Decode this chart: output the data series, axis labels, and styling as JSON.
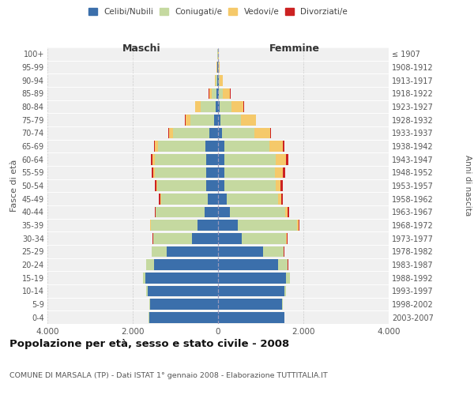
{
  "age_groups": [
    "0-4",
    "5-9",
    "10-14",
    "15-19",
    "20-24",
    "25-29",
    "30-34",
    "35-39",
    "40-44",
    "45-49",
    "50-54",
    "55-59",
    "60-64",
    "65-69",
    "70-74",
    "75-79",
    "80-84",
    "85-89",
    "90-94",
    "95-99",
    "100+"
  ],
  "birth_years": [
    "2003-2007",
    "1998-2002",
    "1993-1997",
    "1988-1992",
    "1983-1987",
    "1978-1982",
    "1973-1977",
    "1968-1972",
    "1963-1967",
    "1958-1962",
    "1953-1957",
    "1948-1952",
    "1943-1947",
    "1938-1942",
    "1933-1937",
    "1928-1932",
    "1923-1927",
    "1918-1922",
    "1913-1917",
    "1908-1912",
    "≤ 1907"
  ],
  "male_celibi": [
    1620,
    1600,
    1650,
    1700,
    1500,
    1200,
    620,
    480,
    310,
    240,
    270,
    280,
    280,
    300,
    200,
    90,
    60,
    30,
    20,
    10,
    5
  ],
  "male_coniugati": [
    5,
    10,
    30,
    60,
    180,
    350,
    900,
    1100,
    1150,
    1100,
    1150,
    1200,
    1200,
    1100,
    850,
    550,
    350,
    110,
    30,
    15,
    5
  ],
  "male_vedovi": [
    2,
    2,
    2,
    5,
    5,
    5,
    5,
    5,
    10,
    15,
    25,
    40,
    60,
    80,
    100,
    120,
    120,
    70,
    25,
    5,
    2
  ],
  "male_divorziati": [
    2,
    2,
    2,
    3,
    5,
    5,
    10,
    15,
    20,
    25,
    30,
    35,
    30,
    25,
    15,
    10,
    8,
    5,
    2,
    0,
    0
  ],
  "female_celibi": [
    1550,
    1500,
    1550,
    1600,
    1400,
    1050,
    550,
    460,
    280,
    200,
    150,
    140,
    150,
    150,
    100,
    50,
    30,
    15,
    10,
    5,
    3
  ],
  "female_coniugati": [
    5,
    10,
    40,
    80,
    230,
    480,
    1050,
    1400,
    1300,
    1200,
    1200,
    1200,
    1200,
    1050,
    750,
    480,
    280,
    90,
    25,
    10,
    3
  ],
  "female_vedovi": [
    2,
    3,
    3,
    5,
    5,
    10,
    20,
    30,
    50,
    80,
    120,
    180,
    250,
    320,
    380,
    350,
    280,
    180,
    80,
    20,
    5
  ],
  "female_divorziati": [
    2,
    2,
    2,
    3,
    5,
    8,
    15,
    25,
    30,
    40,
    45,
    50,
    40,
    30,
    20,
    15,
    12,
    8,
    3,
    0,
    0
  ],
  "colors": {
    "celibi": "#3B6FAB",
    "coniugati": "#C5D9A0",
    "vedovi": "#F5C96A",
    "divorziati": "#CC2222"
  },
  "xlim": 4000,
  "title": "Popolazione per età, sesso e stato civile - 2008",
  "subtitle": "COMUNE DI MARSALA (TP) - Dati ISTAT 1° gennaio 2008 - Elaborazione TUTTITALIA.IT",
  "ylabel_left": "Fasce di età",
  "ylabel_right": "Anni di nascita",
  "xlabel_left": "Maschi",
  "xlabel_right": "Femmine",
  "xtick_vals": [
    -4000,
    -2000,
    0,
    2000,
    4000
  ],
  "xtick_labels": [
    "4.000",
    "2.000",
    "0",
    "2.000",
    "4.000"
  ],
  "bg_color": "#f0f0f0",
  "grid_color": "#cccccc"
}
